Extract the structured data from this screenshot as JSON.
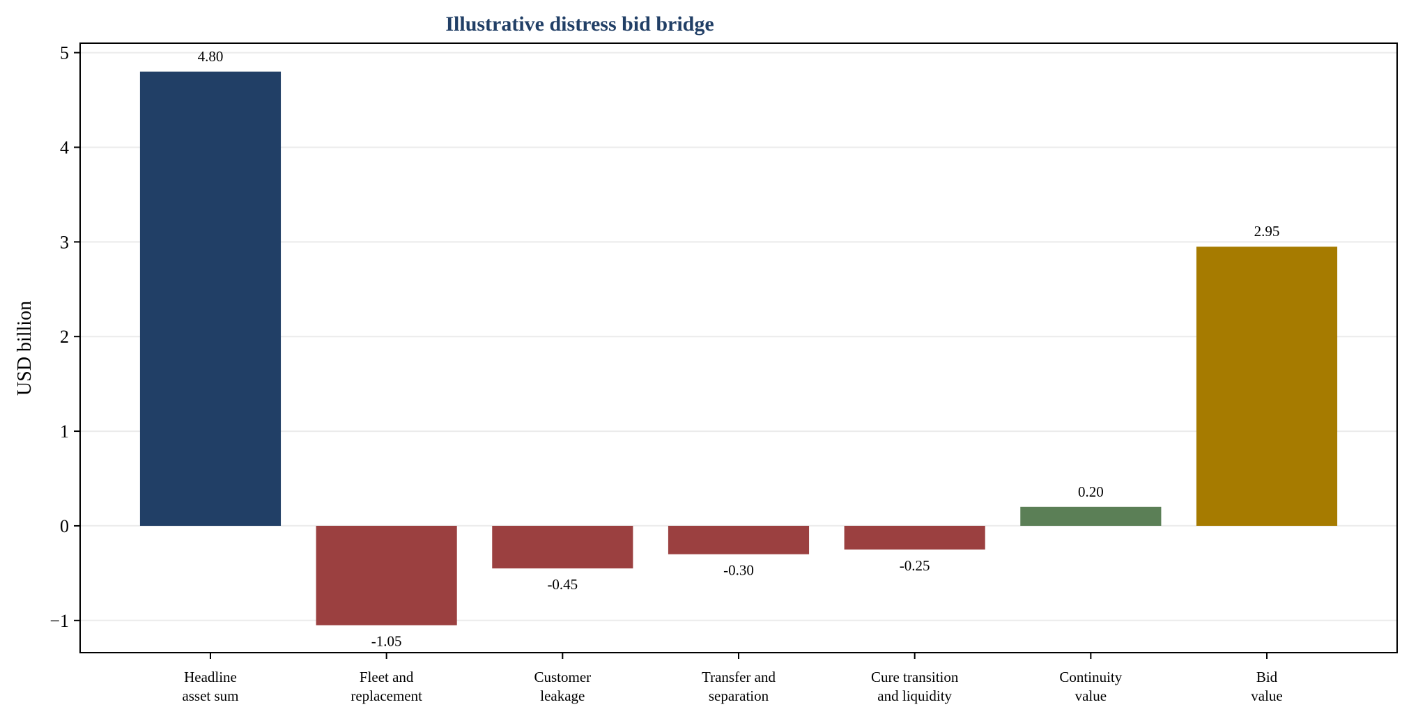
{
  "chart_data": {
    "type": "bar",
    "title": "Illustrative distress bid bridge",
    "xlabel": "",
    "ylabel": "USD billion",
    "ylim": [
      -1.34,
      5.1
    ],
    "yticks": [
      -1,
      0,
      1,
      2,
      3,
      4,
      5
    ],
    "ytick_labels": [
      "−1",
      "0",
      "1",
      "2",
      "3",
      "4",
      "5"
    ],
    "grid": "horizontal",
    "categories": [
      [
        "Headline",
        "asset sum"
      ],
      [
        "Fleet and",
        "replacement"
      ],
      [
        "Customer",
        "leakage"
      ],
      [
        "Transfer and",
        "separation"
      ],
      [
        "Cure transition",
        "and liquidity"
      ],
      [
        "Continuity",
        "value"
      ],
      [
        "Bid",
        "value"
      ]
    ],
    "values": [
      4.8,
      -1.05,
      -0.45,
      -0.3,
      -0.25,
      0.2,
      2.95
    ],
    "data_labels": [
      "4.80",
      "-1.05",
      "-0.45",
      "-0.30",
      "-0.25",
      "0.20",
      "2.95"
    ],
    "colors": [
      "#213f66",
      "#9b4040",
      "#9b4040",
      "#9b4040",
      "#9b4040",
      "#5b7f56",
      "#a67b00"
    ],
    "title_color": "#213f66",
    "grid_color": "#ebebeb",
    "axis_color": "#000000"
  }
}
